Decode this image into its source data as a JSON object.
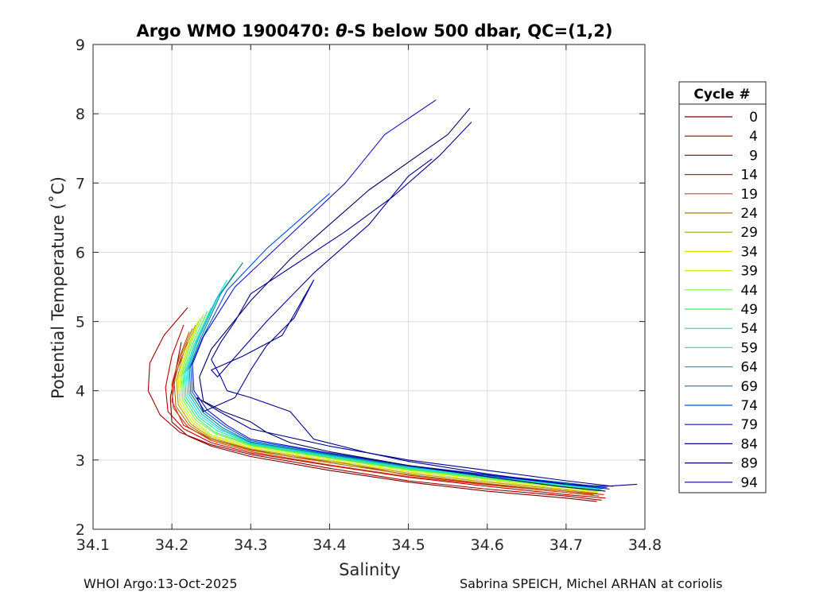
{
  "chart_data": {
    "type": "line",
    "title": "Argo WMO 1900470: θ-S below 500 dbar,  QC=(1,2)",
    "title_parts": {
      "prefix": "Argo WMO 1900470: ",
      "theta": "θ",
      "suffix": "-S below 500 dbar,  QC=(1,2)"
    },
    "xlabel": "Salinity",
    "ylabel": "Potential Temperature (˚C)",
    "xlim": [
      34.1,
      34.8
    ],
    "ylim": [
      2,
      9
    ],
    "xticks": [
      "34.1",
      "34.2",
      "34.3",
      "34.4",
      "34.5",
      "34.6",
      "34.7",
      "34.8"
    ],
    "yticks": [
      "2",
      "3",
      "4",
      "5",
      "6",
      "7",
      "8",
      "9"
    ],
    "grid": true,
    "legend": {
      "title": "Cycle #",
      "placement": "right",
      "entries": [
        {
          "label": "0",
          "color": "#800000"
        },
        {
          "label": "4",
          "color": "#9a0000"
        },
        {
          "label": "9",
          "color": "#c00000"
        },
        {
          "label": "14",
          "color": "#dd1010"
        },
        {
          "label": "19",
          "color": "#d04010"
        },
        {
          "label": "24",
          "color": "#b07000"
        },
        {
          "label": "29",
          "color": "#a8a000"
        },
        {
          "label": "34",
          "color": "#e0e000"
        },
        {
          "label": "39",
          "color": "#c0f020"
        },
        {
          "label": "44",
          "color": "#80f040"
        },
        {
          "label": "49",
          "color": "#40ee60"
        },
        {
          "label": "54",
          "color": "#20e0a0"
        },
        {
          "label": "59",
          "color": "#20e0e0"
        },
        {
          "label": "64",
          "color": "#10b0d0"
        },
        {
          "label": "69",
          "color": "#008080"
        },
        {
          "label": "74",
          "color": "#0050e0"
        },
        {
          "label": "79",
          "color": "#1010c0"
        },
        {
          "label": "84",
          "color": "#000090"
        },
        {
          "label": "89",
          "color": "#000060"
        },
        {
          "label": "94",
          "color": "#000090"
        }
      ]
    },
    "series": [
      {
        "name": "0",
        "color": "#800000",
        "s": [
          34.739,
          34.7,
          34.6,
          34.5,
          34.4,
          34.3,
          34.25,
          34.22,
          34.2,
          34.198,
          34.205,
          34.212
        ],
        "t": [
          2.4,
          2.45,
          2.55,
          2.68,
          2.85,
          3.05,
          3.2,
          3.35,
          3.55,
          3.9,
          4.3,
          4.7
        ]
      },
      {
        "name": "4",
        "color": "#9a0000",
        "s": [
          34.745,
          34.7,
          34.6,
          34.5,
          34.4,
          34.3,
          34.25,
          34.21,
          34.185,
          34.17,
          34.172,
          34.19,
          34.22
        ],
        "t": [
          2.42,
          2.48,
          2.58,
          2.7,
          2.88,
          3.08,
          3.22,
          3.4,
          3.65,
          4.0,
          4.4,
          4.8,
          5.2
        ]
      },
      {
        "name": "9",
        "color": "#c00000",
        "s": [
          34.75,
          34.7,
          34.6,
          34.5,
          34.4,
          34.3,
          34.25,
          34.215,
          34.195,
          34.192,
          34.2,
          34.215
        ],
        "t": [
          2.45,
          2.5,
          2.62,
          2.75,
          2.92,
          3.1,
          3.25,
          3.45,
          3.7,
          4.05,
          4.5,
          4.95
        ]
      },
      {
        "name": "14",
        "color": "#dd1010",
        "s": [
          34.748,
          34.7,
          34.6,
          34.5,
          34.42,
          34.35,
          34.3,
          34.25,
          34.215,
          34.2,
          34.205,
          34.22
        ],
        "t": [
          2.5,
          2.55,
          2.65,
          2.78,
          2.95,
          3.05,
          3.15,
          3.3,
          3.5,
          3.85,
          4.25,
          4.7
        ]
      },
      {
        "name": "19",
        "color": "#d04010",
        "s": [
          34.742,
          34.7,
          34.6,
          34.5,
          34.4,
          34.3,
          34.25,
          34.22,
          34.202,
          34.2,
          34.21,
          34.222
        ],
        "t": [
          2.48,
          2.53,
          2.64,
          2.76,
          2.93,
          3.12,
          3.28,
          3.48,
          3.75,
          4.1,
          4.5,
          4.85
        ]
      },
      {
        "name": "24",
        "color": "#b07000",
        "s": [
          34.735,
          34.7,
          34.6,
          34.5,
          34.4,
          34.3,
          34.25,
          34.222,
          34.205,
          34.203,
          34.212,
          34.226
        ],
        "t": [
          2.5,
          2.55,
          2.66,
          2.79,
          2.96,
          3.14,
          3.3,
          3.5,
          3.78,
          4.12,
          4.52,
          4.9
        ]
      },
      {
        "name": "29",
        "color": "#a8a000",
        "s": [
          34.74,
          34.7,
          34.6,
          34.5,
          34.4,
          34.3,
          34.25,
          34.224,
          34.208,
          34.206,
          34.215,
          34.23
        ],
        "t": [
          2.52,
          2.57,
          2.68,
          2.81,
          2.98,
          3.16,
          3.32,
          3.52,
          3.8,
          4.15,
          4.55,
          4.95
        ]
      },
      {
        "name": "34",
        "color": "#e0e000",
        "s": [
          34.738,
          34.7,
          34.6,
          34.5,
          34.4,
          34.3,
          34.25,
          34.226,
          34.21,
          34.208,
          34.218,
          34.233
        ],
        "t": [
          2.53,
          2.58,
          2.7,
          2.83,
          3.0,
          3.18,
          3.34,
          3.54,
          3.82,
          4.17,
          4.57,
          5.0
        ]
      },
      {
        "name": "39",
        "color": "#c0f020",
        "s": [
          34.74,
          34.7,
          34.6,
          34.5,
          34.4,
          34.3,
          34.25,
          34.228,
          34.212,
          34.21,
          34.22,
          34.236
        ],
        "t": [
          2.54,
          2.6,
          2.72,
          2.85,
          3.02,
          3.2,
          3.36,
          3.56,
          3.84,
          4.19,
          4.6,
          5.05
        ]
      },
      {
        "name": "44",
        "color": "#80f040",
        "s": [
          34.742,
          34.7,
          34.6,
          34.5,
          34.4,
          34.3,
          34.255,
          34.23,
          34.214,
          34.212,
          34.222,
          34.24
        ],
        "t": [
          2.55,
          2.61,
          2.73,
          2.86,
          3.03,
          3.21,
          3.38,
          3.58,
          3.86,
          4.21,
          4.62,
          5.1
        ]
      },
      {
        "name": "49",
        "color": "#40ee60",
        "s": [
          34.744,
          34.7,
          34.6,
          34.5,
          34.4,
          34.3,
          34.255,
          34.232,
          34.216,
          34.214,
          34.225,
          34.245
        ],
        "t": [
          2.56,
          2.62,
          2.74,
          2.87,
          3.04,
          3.22,
          3.4,
          3.6,
          3.88,
          4.23,
          4.64,
          5.15
        ]
      },
      {
        "name": "54",
        "color": "#20e0a0",
        "s": [
          34.745,
          34.7,
          34.6,
          34.5,
          34.4,
          34.3,
          34.258,
          34.234,
          34.218,
          34.216,
          34.228,
          34.25
        ],
        "t": [
          2.57,
          2.63,
          2.75,
          2.88,
          3.05,
          3.23,
          3.42,
          3.62,
          3.9,
          4.25,
          4.66,
          5.2
        ]
      },
      {
        "name": "59",
        "color": "#20e0e0",
        "s": [
          34.746,
          34.7,
          34.6,
          34.5,
          34.4,
          34.3,
          34.26,
          34.236,
          34.22,
          34.218,
          34.23,
          34.255,
          34.27
        ],
        "t": [
          2.58,
          2.64,
          2.76,
          2.89,
          3.06,
          3.24,
          3.44,
          3.64,
          3.92,
          4.27,
          4.68,
          5.3,
          5.6
        ]
      },
      {
        "name": "64",
        "color": "#10b0d0",
        "s": [
          34.748,
          34.7,
          34.6,
          34.5,
          34.4,
          34.3,
          34.262,
          34.238,
          34.222,
          34.22,
          34.232,
          34.258,
          34.28
        ],
        "t": [
          2.59,
          2.65,
          2.77,
          2.9,
          3.07,
          3.25,
          3.45,
          3.66,
          3.94,
          4.3,
          4.7,
          5.35,
          5.7
        ]
      },
      {
        "name": "69",
        "color": "#008080",
        "s": [
          34.75,
          34.7,
          34.6,
          34.5,
          34.4,
          34.3,
          34.265,
          34.24,
          34.224,
          34.222,
          34.235,
          34.262,
          34.29
        ],
        "t": [
          2.6,
          2.66,
          2.78,
          2.91,
          3.08,
          3.26,
          3.46,
          3.68,
          3.96,
          4.32,
          4.72,
          5.4,
          5.85
        ]
      },
      {
        "name": "74",
        "color": "#0050e0",
        "s": [
          34.752,
          34.7,
          34.6,
          34.5,
          34.4,
          34.3,
          34.268,
          34.242,
          34.226,
          34.224,
          34.238,
          34.27,
          34.32,
          34.4
        ],
        "t": [
          2.6,
          2.67,
          2.79,
          2.92,
          3.09,
          3.28,
          3.48,
          3.7,
          3.98,
          4.35,
          4.75,
          5.45,
          6.05,
          6.85
        ]
      },
      {
        "name": "79",
        "color": "#1010c0",
        "s": [
          34.755,
          34.7,
          34.6,
          34.5,
          34.4,
          34.3,
          34.27,
          34.245,
          34.228,
          34.226,
          34.24,
          34.28,
          34.35,
          34.42,
          34.47,
          34.535
        ],
        "t": [
          2.58,
          2.65,
          2.78,
          2.92,
          3.1,
          3.3,
          3.5,
          3.72,
          4.0,
          4.38,
          4.78,
          5.5,
          6.25,
          7.0,
          7.7,
          8.2
        ]
      },
      {
        "name": "84",
        "color": "#000090",
        "s": [
          34.76,
          34.7,
          34.6,
          34.5,
          34.4,
          34.3,
          34.26,
          34.232,
          34.24,
          34.28,
          34.3,
          34.32,
          34.355,
          34.38,
          34.34,
          34.29,
          34.25,
          34.258,
          34.32,
          34.38,
          34.45,
          34.5,
          34.53
        ],
        "t": [
          2.62,
          2.7,
          2.85,
          3.0,
          3.2,
          3.45,
          3.7,
          3.9,
          3.7,
          3.9,
          4.3,
          4.65,
          5.05,
          5.6,
          4.8,
          4.5,
          4.3,
          4.2,
          5.0,
          5.7,
          6.4,
          7.1,
          7.35
        ]
      },
      {
        "name": "89",
        "color": "#000060",
        "s": [
          34.75,
          34.69,
          34.6,
          34.5,
          34.4,
          34.35,
          34.32,
          34.3,
          34.265,
          34.24,
          34.235,
          34.25,
          34.3,
          34.35,
          34.4,
          34.45,
          34.5,
          34.55,
          34.578
        ],
        "t": [
          2.55,
          2.62,
          2.76,
          2.92,
          3.12,
          3.25,
          3.4,
          3.55,
          3.7,
          3.85,
          4.2,
          4.6,
          5.3,
          5.9,
          6.4,
          6.9,
          7.3,
          7.7,
          8.08
        ]
      },
      {
        "name": "94",
        "color": "#000090",
        "s": [
          34.79,
          34.75,
          34.7,
          34.6,
          34.5,
          34.45,
          34.38,
          34.35,
          34.3,
          34.27,
          34.262,
          34.25,
          34.262,
          34.28,
          34.3,
          34.36,
          34.42,
          34.48,
          34.54,
          34.58
        ],
        "t": [
          2.65,
          2.62,
          2.65,
          2.8,
          2.98,
          3.1,
          3.3,
          3.7,
          3.9,
          4.0,
          4.2,
          4.45,
          4.7,
          5.0,
          5.4,
          5.85,
          6.3,
          6.8,
          7.4,
          7.88
        ]
      }
    ]
  },
  "footer": {
    "left": "WHOI Argo:13-Oct-2025",
    "right": "Sabrina SPEICH, Michel ARHAN at coriolis"
  }
}
